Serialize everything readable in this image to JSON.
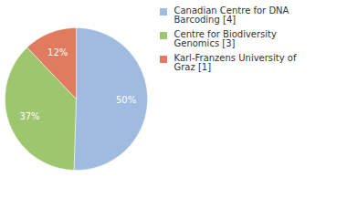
{
  "chart_data": {
    "type": "pie",
    "categories": [
      "Canadian Centre for DNA Barcoding [4]",
      "Centre for Biodiversity Genomics [3]",
      "Karl-Franzens University of Graz [1]"
    ],
    "values": [
      50,
      37,
      12
    ],
    "value_labels": [
      "50%",
      "37%",
      "12%"
    ],
    "colors": [
      "#9fbbe0",
      "#9dc66f",
      "#e07b60"
    ],
    "data_labels": true,
    "legend": "top-right"
  }
}
